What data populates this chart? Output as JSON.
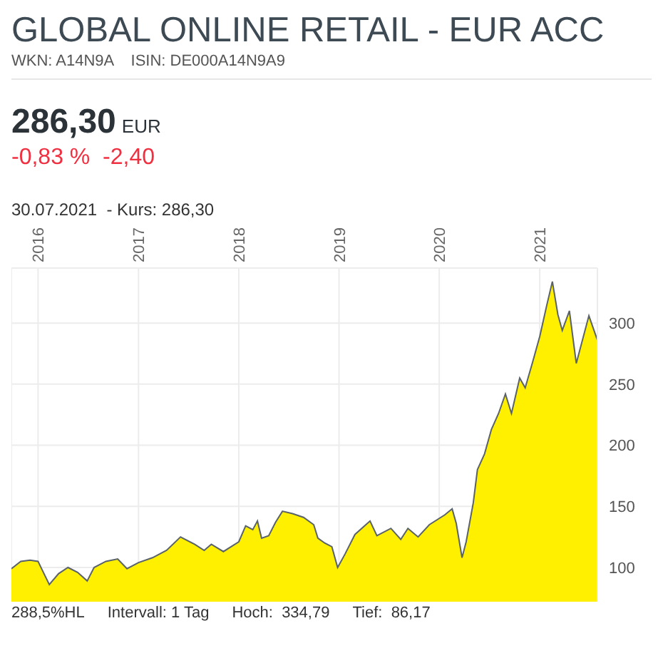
{
  "chart_data": {
    "type": "area",
    "title": "GLOBAL ONLINE RETAIL - EUR ACC",
    "subtitle": "WKN: A14N9A    ISIN: DE000A14N9A9",
    "annotations": [
      "286,30",
      "EUR",
      "-0,83 %  -2,40",
      "30.07.2021  - Kurs: 286,30",
      "288,5%HL",
      "Intervall: 1 Tag",
      "Hoch:  334,79",
      "Tief:  86,17"
    ],
    "x": [
      "2015-09-26",
      "2015-10-30",
      "2015-12-03",
      "2016-01-01",
      "2016-01-16",
      "2016-02-11",
      "2016-03-16",
      "2016-04-19",
      "2016-05-24",
      "2016-06-28",
      "2016-07-23",
      "2016-09-04",
      "2016-10-17",
      "2016-11-20",
      "2017-01-01",
      "2017-02-21",
      "2017-04-13",
      "2017-06-03",
      "2017-07-24",
      "2017-08-28",
      "2017-09-23",
      "2017-11-06",
      "2018-01-01",
      "2018-01-26",
      "2018-02-21",
      "2018-03-10",
      "2018-03-25",
      "2018-04-20",
      "2018-05-15",
      "2018-06-09",
      "2018-07-16",
      "2018-08-25",
      "2018-10-01",
      "2018-10-16",
      "2018-11-10",
      "2018-12-06",
      "2018-12-27",
      "2019-01-23",
      "2019-02-28",
      "2019-04-24",
      "2019-05-19",
      "2019-07-09",
      "2019-08-14",
      "2019-09-09",
      "2019-10-16",
      "2019-11-26",
      "2020-01-21",
      "2020-02-17",
      "2020-03-03",
      "2020-03-24",
      "2020-04-08",
      "2020-05-04",
      "2020-05-19",
      "2020-06-14",
      "2020-07-09",
      "2020-08-04",
      "2020-08-29",
      "2020-09-20",
      "2020-10-20",
      "2020-11-09",
      "2020-12-06",
      "2021-01-01",
      "2021-01-26",
      "2021-02-16",
      "2021-03-08",
      "2021-03-24",
      "2021-04-19",
      "2021-05-14",
      "2021-06-29",
      "2021-07-30"
    ],
    "series": [
      {
        "color": "#fff000",
        "values": [
          99,
          105,
          106,
          105,
          98,
          86,
          95,
          100,
          96,
          89,
          100,
          105,
          107,
          99,
          104,
          108,
          114,
          125,
          119,
          114,
          119,
          113,
          121,
          134,
          131,
          138,
          124,
          126,
          137,
          146,
          144,
          141,
          135,
          124,
          120,
          117,
          100,
          111,
          127,
          138,
          126,
          132,
          123,
          132,
          125,
          135,
          143,
          148,
          136,
          108,
          121,
          153,
          180,
          193,
          213,
          226,
          242,
          226,
          255,
          247,
          268,
          289,
          314,
          334,
          307,
          294,
          310,
          267,
          306,
          286
        ]
      }
    ],
    "xlim": [
      "2015-09-26",
      "2021-07-30"
    ],
    "xticks": [
      "2016",
      "2017",
      "2018",
      "2019",
      "2020",
      "2021"
    ],
    "ylim": [
      72,
      345
    ],
    "yticks": [
      100,
      150,
      200,
      250,
      300
    ],
    "grid": true,
    "legend": false
  }
}
